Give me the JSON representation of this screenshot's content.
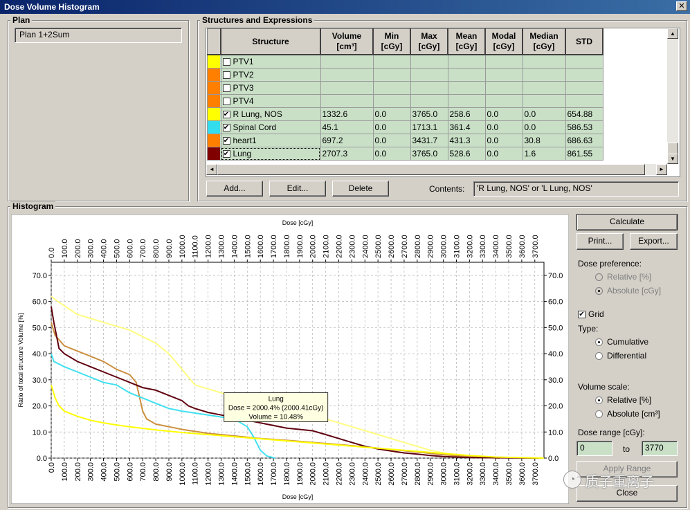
{
  "window": {
    "title": "Dose Volume Histogram",
    "close_glyph": "✕"
  },
  "plan": {
    "group_label": "Plan",
    "value": "Plan 1+2Sum"
  },
  "structures": {
    "group_label": "Structures and Expressions",
    "columns": [
      "Structure",
      "Volume\n[cm³]",
      "Min\n[cGy]",
      "Max\n[cGy]",
      "Mean\n[cGy]",
      "Modal\n[cGy]",
      "Median\n[cGy]",
      "STD"
    ],
    "rows": [
      {
        "color": "#ffff00",
        "checked": false,
        "name": "PTV1",
        "volume": "",
        "min": "",
        "max": "",
        "mean": "",
        "modal": "",
        "median": "",
        "std": ""
      },
      {
        "color": "#ff8000",
        "checked": false,
        "name": "PTV2",
        "volume": "",
        "min": "",
        "max": "",
        "mean": "",
        "modal": "",
        "median": "",
        "std": ""
      },
      {
        "color": "#ff8000",
        "checked": false,
        "name": "PTV3",
        "volume": "",
        "min": "",
        "max": "",
        "mean": "",
        "modal": "",
        "median": "",
        "std": ""
      },
      {
        "color": "#ff8000",
        "checked": false,
        "name": "PTV4",
        "volume": "",
        "min": "",
        "max": "",
        "mean": "",
        "modal": "",
        "median": "",
        "std": ""
      },
      {
        "color": "#ffff00",
        "checked": true,
        "name": "R Lung, NOS",
        "volume": "1332.6",
        "min": "0.0",
        "max": "3765.0",
        "mean": "258.6",
        "modal": "0.0",
        "median": "0.0",
        "std": "654.88"
      },
      {
        "color": "#33ddee",
        "checked": true,
        "name": "Spinal Cord",
        "volume": "45.1",
        "min": "0.0",
        "max": "1713.1",
        "mean": "361.4",
        "modal": "0.0",
        "median": "0.0",
        "std": "586.53"
      },
      {
        "color": "#ff8000",
        "checked": true,
        "name": "heart1",
        "volume": "697.2",
        "min": "0.0",
        "max": "3431.7",
        "mean": "431.3",
        "modal": "0.0",
        "median": "30.8",
        "std": "686.63"
      },
      {
        "color": "#800000",
        "checked": true,
        "name": "Lung",
        "volume": "2707.3",
        "min": "0.0",
        "max": "3765.0",
        "mean": "528.6",
        "modal": "0.0",
        "median": "1.6",
        "std": "861.55"
      }
    ],
    "buttons": {
      "add": "Add...",
      "edit": "Edit...",
      "delete": "Delete"
    },
    "contents_label": "Contents:",
    "contents_value": "'R Lung, NOS' or 'L Lung, NOS'",
    "scroll_up": "▲",
    "scroll_down": "▼",
    "scroll_left": "◄",
    "scroll_right": "►"
  },
  "histogram": {
    "group_label": "Histogram"
  },
  "controls": {
    "calculate": "Calculate",
    "print": "Print...",
    "export": "Export...",
    "dose_pref_label": "Dose preference:",
    "relative_pct": "Relative [%]",
    "absolute_cgy": "Absolute [cGy]",
    "grid_label": "Grid",
    "type_label": "Type:",
    "cumulative": "Cumulative",
    "differential": "Differential",
    "volume_scale_label": "Volume scale:",
    "vol_relative": "Relative [%]",
    "vol_absolute": "Absolute [cm³]",
    "dose_range_label": "Dose range [cGy]:",
    "range_from": "0",
    "range_to_label": "to",
    "range_to": "3770",
    "apply_range": "Apply Range",
    "close": "Close"
  },
  "watermark": "质子重离子",
  "chart_data": {
    "type": "line",
    "title": "",
    "xlabel": "Dose [cGy]",
    "ylabel": "Ratio of total structure Volume [%]",
    "xlim": [
      0,
      3770
    ],
    "ylim": [
      0,
      75
    ],
    "grid": true,
    "x_ticks": [
      "0.0",
      "100.0",
      "200.0",
      "300.0",
      "400.0",
      "500.0",
      "600.0",
      "700.0",
      "800.0",
      "900.0",
      "1000.0",
      "1100.0",
      "1200.0",
      "1300.0",
      "1400.0",
      "1500.0",
      "1600.0",
      "1700.0",
      "1800.0",
      "1900.0",
      "2000.0",
      "2100.0",
      "2200.0",
      "2300.0",
      "2400.0",
      "2500.0",
      "2600.0",
      "2700.0",
      "2800.0",
      "2900.0",
      "3000.0",
      "3100.0",
      "3200.0",
      "3300.0",
      "3400.0",
      "3500.0",
      "3600.0",
      "3700.0"
    ],
    "y_ticks": [
      "0.0",
      "10.0",
      "20.0",
      "30.0",
      "40.0",
      "50.0",
      "60.0",
      "70.0"
    ],
    "series": [
      {
        "color": "#ffff80",
        "points": [
          [
            0,
            62
          ],
          [
            50,
            60
          ],
          [
            200,
            55
          ],
          [
            400,
            52
          ],
          [
            600,
            49
          ],
          [
            800,
            44
          ],
          [
            900,
            40
          ],
          [
            1000,
            34
          ],
          [
            1100,
            28
          ],
          [
            1300,
            25
          ],
          [
            1500,
            22
          ],
          [
            1700,
            20
          ],
          [
            1900,
            18
          ],
          [
            2100,
            15
          ],
          [
            2300,
            12
          ],
          [
            2500,
            9
          ],
          [
            2700,
            6
          ],
          [
            2900,
            3
          ],
          [
            3100,
            1
          ],
          [
            3300,
            0.3
          ],
          [
            3770,
            0
          ]
        ]
      },
      {
        "color": "#cc9040",
        "points": [
          [
            0,
            52
          ],
          [
            30,
            47
          ],
          [
            100,
            43
          ],
          [
            200,
            41
          ],
          [
            300,
            39
          ],
          [
            400,
            37
          ],
          [
            500,
            34
          ],
          [
            600,
            32
          ],
          [
            650,
            29
          ],
          [
            700,
            18
          ],
          [
            730,
            15
          ],
          [
            800,
            13
          ],
          [
            1000,
            11
          ],
          [
            1200,
            9.5
          ],
          [
            1400,
            8.5
          ],
          [
            1600,
            7.5
          ],
          [
            1800,
            6.8
          ],
          [
            2000,
            6
          ],
          [
            2200,
            5.2
          ],
          [
            2400,
            4.3
          ],
          [
            2600,
            3.3
          ],
          [
            2800,
            2.3
          ],
          [
            3000,
            1.3
          ],
          [
            3200,
            0.5
          ],
          [
            3431,
            0
          ]
        ]
      },
      {
        "color": "#40e0f0",
        "points": [
          [
            0,
            40
          ],
          [
            20,
            37
          ],
          [
            100,
            35
          ],
          [
            200,
            33
          ],
          [
            300,
            31
          ],
          [
            400,
            29
          ],
          [
            500,
            28
          ],
          [
            600,
            25
          ],
          [
            700,
            23
          ],
          [
            800,
            21
          ],
          [
            900,
            19
          ],
          [
            1000,
            18
          ],
          [
            1200,
            16.5
          ],
          [
            1400,
            15
          ],
          [
            1500,
            12
          ],
          [
            1550,
            8
          ],
          [
            1600,
            3
          ],
          [
            1650,
            0.8
          ],
          [
            1713,
            0
          ]
        ]
      },
      {
        "color": "#600010",
        "points": [
          [
            0,
            58
          ],
          [
            20,
            52
          ],
          [
            60,
            42
          ],
          [
            100,
            40
          ],
          [
            200,
            37
          ],
          [
            300,
            35
          ],
          [
            400,
            33
          ],
          [
            500,
            31
          ],
          [
            600,
            29
          ],
          [
            700,
            27
          ],
          [
            800,
            26
          ],
          [
            900,
            24
          ],
          [
            1000,
            22
          ],
          [
            1050,
            20
          ],
          [
            1100,
            19
          ],
          [
            1200,
            17.5
          ],
          [
            1300,
            16.5
          ],
          [
            1400,
            15.5
          ],
          [
            1500,
            14.5
          ],
          [
            1600,
            13.5
          ],
          [
            1800,
            11.5
          ],
          [
            2000,
            10.48
          ],
          [
            2100,
            9
          ],
          [
            2200,
            7.5
          ],
          [
            2300,
            6
          ],
          [
            2400,
            4.5
          ],
          [
            2500,
            3.5
          ],
          [
            2600,
            2.7
          ],
          [
            2700,
            2
          ],
          [
            2800,
            1.5
          ],
          [
            2900,
            1
          ],
          [
            3000,
            0.6
          ],
          [
            3200,
            0.2
          ],
          [
            3765,
            0
          ]
        ]
      },
      {
        "color": "#ffff00",
        "points": [
          [
            0,
            28
          ],
          [
            30,
            23
          ],
          [
            60,
            20
          ],
          [
            100,
            18
          ],
          [
            200,
            16
          ],
          [
            300,
            14.5
          ],
          [
            400,
            13.5
          ],
          [
            500,
            12.7
          ],
          [
            600,
            12
          ],
          [
            800,
            10.8
          ],
          [
            1000,
            9.8
          ],
          [
            1200,
            9
          ],
          [
            1400,
            8.2
          ],
          [
            1600,
            7.4
          ],
          [
            1800,
            6.6
          ],
          [
            2000,
            5.8
          ],
          [
            2200,
            5
          ],
          [
            2400,
            4.2
          ],
          [
            2600,
            3.4
          ],
          [
            2800,
            2.6
          ],
          [
            3000,
            1.8
          ],
          [
            3200,
            1
          ],
          [
            3400,
            0.4
          ],
          [
            3765,
            0
          ]
        ]
      }
    ],
    "tooltip": {
      "title": "Lung",
      "line1": "Dose = 2000.4% (2000.41cGy)",
      "line2": "Volume = 10.48%",
      "x": 2000,
      "y": 10.48
    }
  }
}
